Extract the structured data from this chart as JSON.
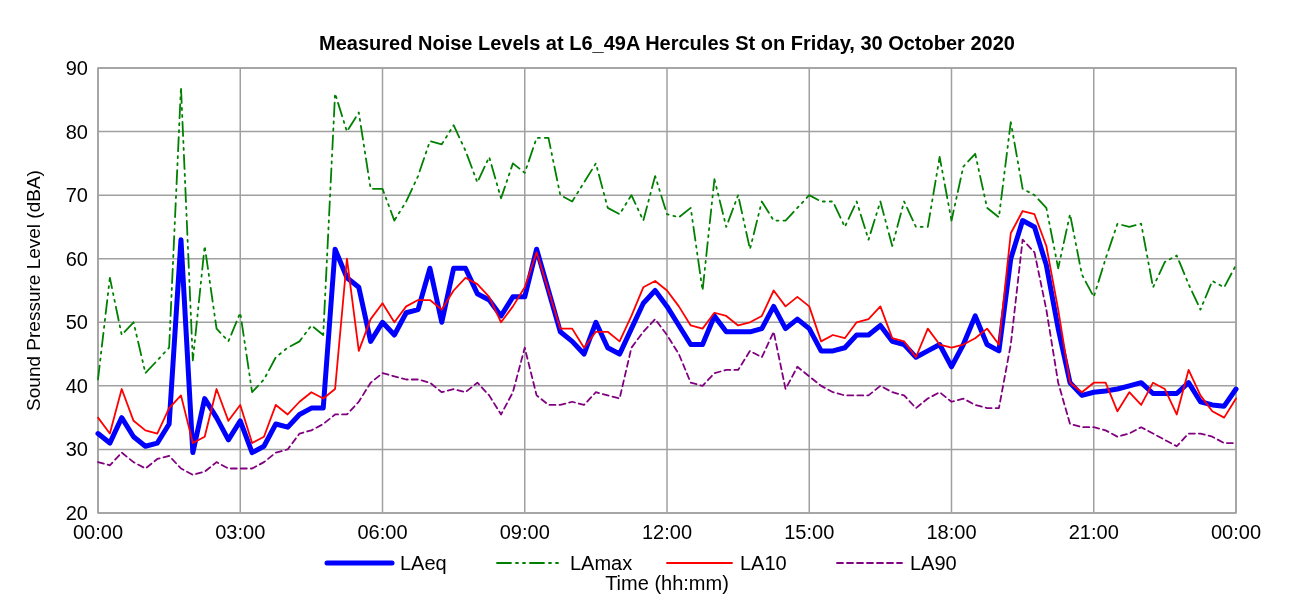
{
  "chart_data": {
    "type": "line",
    "title": "Measured Noise Levels at L6_49A Hercules St on Friday, 30 October 2020",
    "xlabel": "Time (hh:mm)",
    "ylabel": "Sound Pressure Level (dBA)",
    "x": [
      0,
      0.25,
      0.5,
      0.75,
      1,
      1.25,
      1.5,
      1.75,
      2,
      2.25,
      2.5,
      2.75,
      3,
      3.25,
      3.5,
      3.75,
      4,
      4.25,
      4.5,
      4.75,
      5,
      5.25,
      5.5,
      5.75,
      6,
      6.25,
      6.5,
      6.75,
      7,
      7.25,
      7.5,
      7.75,
      8,
      8.25,
      8.5,
      8.75,
      9,
      9.25,
      9.5,
      9.75,
      10,
      10.25,
      10.5,
      10.75,
      11,
      11.25,
      11.5,
      11.75,
      12,
      12.25,
      12.5,
      12.75,
      13,
      13.25,
      13.5,
      13.75,
      14,
      14.25,
      14.5,
      14.75,
      15,
      15.25,
      15.5,
      15.75,
      16,
      16.25,
      16.5,
      16.75,
      17,
      17.25,
      17.5,
      17.75,
      18,
      18.25,
      18.5,
      18.75,
      19,
      19.25,
      19.5,
      19.75,
      20,
      20.25,
      20.5,
      20.75,
      21,
      21.25,
      21.5,
      21.75,
      22,
      22.25,
      22.5,
      22.75,
      23,
      23.25,
      23.5,
      23.75,
      24
    ],
    "series": [
      {
        "name": "LAeq",
        "color": "#0000ff",
        "line_style": "solid",
        "values": [
          32.5,
          31,
          35,
          32,
          30.5,
          31,
          34,
          63,
          29.5,
          38,
          35,
          31.5,
          34.5,
          29.5,
          30.5,
          34,
          33.5,
          35.5,
          36.5,
          36.5,
          61.5,
          57,
          55.5,
          47,
          50,
          48,
          51.5,
          52,
          58.5,
          50,
          58.5,
          58.5,
          54.5,
          53.5,
          51,
          54,
          54,
          61.5,
          55,
          48.5,
          47,
          45,
          50,
          46,
          45,
          49,
          53,
          55,
          52.5,
          49.5,
          46.5,
          46.5,
          51,
          48.5,
          48.5,
          48.5,
          49,
          52.5,
          49,
          50.5,
          49,
          45.5,
          45.5,
          46,
          48,
          48,
          49.5,
          47,
          46.5,
          44.5,
          45.5,
          46.5,
          43,
          46.5,
          51,
          46.5,
          45.5,
          60,
          66,
          65,
          59,
          49,
          40.5,
          38.5,
          39,
          39.2,
          39.5,
          40,
          40.5,
          38.8,
          38.8,
          38.8,
          40.5,
          37.5,
          37,
          36.8,
          39.5
        ]
      },
      {
        "name": "LAmax",
        "color": "#008000",
        "line_style": "dashdot",
        "values": [
          41,
          57,
          48,
          50,
          42,
          44,
          46,
          87,
          44,
          62,
          49,
          47,
          51.5,
          39,
          41,
          44.5,
          46,
          47,
          49.5,
          48,
          86,
          80,
          83,
          71,
          71,
          66,
          69,
          73,
          78.5,
          78,
          81,
          77,
          72,
          76,
          69.5,
          75,
          73.5,
          79,
          79,
          70,
          69,
          72,
          75,
          68,
          67,
          70,
          66,
          73,
          67,
          66.5,
          68,
          55,
          72.5,
          65,
          70,
          61.5,
          69,
          66,
          66,
          68,
          70,
          69,
          69,
          65,
          69,
          63,
          69,
          62,
          69,
          65,
          65,
          76,
          66,
          74.5,
          76.5,
          68,
          66.5,
          81.5,
          71,
          70,
          68,
          58.5,
          67,
          57.5,
          54,
          60,
          65.5,
          65,
          65.5,
          55.5,
          59.5,
          60.5,
          56,
          52,
          56.5,
          55.5,
          59
        ]
      },
      {
        "name": "LA10",
        "color": "#ff0000",
        "line_style": "solid",
        "values": [
          35,
          32.5,
          39.5,
          34.5,
          33,
          32.5,
          36.5,
          38.5,
          31,
          32,
          39.5,
          34.5,
          37,
          31,
          32,
          37,
          35.5,
          37.5,
          39,
          38,
          39.5,
          60,
          45.5,
          50.5,
          53,
          50,
          52.5,
          53.5,
          53.5,
          52,
          55,
          57,
          56,
          54,
          50,
          52.5,
          55.5,
          61,
          55,
          49,
          49,
          46,
          48.5,
          48.5,
          47,
          51,
          55.5,
          56.5,
          55,
          52.5,
          49.5,
          49,
          51.5,
          51,
          49.5,
          50,
          51,
          55,
          52.5,
          54,
          52.5,
          47,
          48,
          47.5,
          50,
          50.5,
          52.5,
          47.5,
          47,
          44.5,
          49,
          46.5,
          46,
          46.5,
          47.5,
          49,
          46.5,
          64,
          67.5,
          67,
          62,
          52,
          40.5,
          39,
          40.5,
          40.5,
          36,
          39,
          37,
          40.5,
          39.5,
          35.5,
          42.5,
          38.5,
          36,
          35,
          38
        ]
      },
      {
        "name": "LA90",
        "color": "#800080",
        "line_style": "dashed",
        "values": [
          28,
          27.5,
          29.5,
          28,
          27,
          28.5,
          29,
          27,
          26,
          26.5,
          28,
          27,
          27,
          27,
          28,
          29.5,
          30,
          32.5,
          33,
          34,
          35.5,
          35.5,
          37.5,
          40.5,
          42,
          41.5,
          41,
          41,
          40.5,
          39,
          39.5,
          39,
          40.5,
          38.5,
          35.5,
          39,
          46,
          38.5,
          37,
          37,
          37.5,
          37,
          39,
          38.5,
          38,
          46,
          48.5,
          50.5,
          48,
          45,
          40.5,
          40,
          42,
          42.5,
          42.5,
          45.5,
          44.5,
          48.5,
          39.5,
          43,
          41.5,
          40,
          39,
          38.5,
          38.5,
          38.5,
          40,
          39,
          38.5,
          36.5,
          38,
          39,
          37.5,
          38,
          37,
          36.5,
          36.5,
          46.5,
          63,
          61,
          52,
          40.5,
          34,
          33.5,
          33.5,
          33,
          32,
          32.5,
          33.5,
          32.5,
          31.5,
          30.5,
          32.5,
          32.5,
          32,
          31,
          31
        ]
      }
    ],
    "xlim": [
      0,
      24
    ],
    "xticks": [
      {
        "value": 0,
        "label": "00:00"
      },
      {
        "value": 3,
        "label": "03:00"
      },
      {
        "value": 6,
        "label": "06:00"
      },
      {
        "value": 9,
        "label": "09:00"
      },
      {
        "value": 12,
        "label": "12:00"
      },
      {
        "value": 15,
        "label": "15:00"
      },
      {
        "value": 18,
        "label": "18:00"
      },
      {
        "value": 21,
        "label": "21:00"
      },
      {
        "value": 24,
        "label": "00:00"
      }
    ],
    "ylim": [
      20,
      90
    ],
    "yticks": [
      20,
      30,
      40,
      50,
      60,
      70,
      80,
      90
    ],
    "grid": true,
    "legend": "bottom",
    "marker": "none"
  }
}
